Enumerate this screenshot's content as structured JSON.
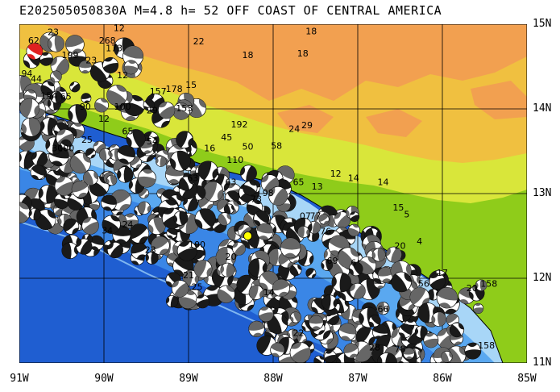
{
  "title": "E202505050830A  M=4.8  h= 52  OFF COAST OF CENTRAL AMERICA",
  "map": {
    "lon_range": [
      -91,
      -85
    ],
    "lat_range": [
      11,
      15
    ],
    "lat_labels": [
      "15N",
      "14N",
      "13N",
      "12N",
      "11N"
    ],
    "lon_labels": [
      "91W",
      "90W",
      "89W",
      "88W",
      "87W",
      "86W",
      "85W"
    ],
    "grid_lines": true,
    "colors": {
      "deep_ocean": "#1f5ed1",
      "mid_ocean": "#3a86e6",
      "shelf": "#5aa8f0",
      "shallow": "#a8d6f7",
      "lowland": "#8fcc1a",
      "hills": "#d9e63a",
      "highland": "#f0c040",
      "mountains": "#f2a050",
      "event_star": "#ffff00",
      "main_mechanism": "#e02020"
    }
  },
  "event": {
    "lon": -88.3,
    "lat": 12.5
  },
  "labels": [
    {
      "text": "23",
      "lon": -90.6,
      "lat": 14.87
    },
    {
      "text": "62",
      "lon": -90.83,
      "lat": 14.77
    },
    {
      "text": "12",
      "lon": -89.82,
      "lat": 14.92
    },
    {
      "text": "268",
      "lon": -89.96,
      "lat": 14.77
    },
    {
      "text": "173",
      "lon": -89.88,
      "lat": 14.68
    },
    {
      "text": "22",
      "lon": -88.88,
      "lat": 14.76
    },
    {
      "text": "18",
      "lon": -88.3,
      "lat": 14.6
    },
    {
      "text": "18",
      "lon": -87.65,
      "lat": 14.62
    },
    {
      "text": "18",
      "lon": -87.55,
      "lat": 14.88
    },
    {
      "text": "199",
      "lon": -90.4,
      "lat": 14.6
    },
    {
      "text": "23",
      "lon": -90.15,
      "lat": 14.54
    },
    {
      "text": "94",
      "lon": -90.91,
      "lat": 14.38
    },
    {
      "text": "44",
      "lon": -90.8,
      "lat": 14.32
    },
    {
      "text": "12",
      "lon": -89.78,
      "lat": 14.36
    },
    {
      "text": "178",
      "lon": -89.17,
      "lat": 14.2
    },
    {
      "text": "15",
      "lon": -88.97,
      "lat": 14.25
    },
    {
      "text": "157",
      "lon": -89.36,
      "lat": 14.17
    },
    {
      "text": "154",
      "lon": -90.65,
      "lat": 14.12
    },
    {
      "text": "65",
      "lon": -90.45,
      "lat": 14.11
    },
    {
      "text": "90",
      "lon": -90.22,
      "lat": 13.99
    },
    {
      "text": "100",
      "lon": -89.78,
      "lat": 13.99
    },
    {
      "text": "12",
      "lon": -90.0,
      "lat": 13.85
    },
    {
      "text": "29",
      "lon": -89.43,
      "lat": 13.95
    },
    {
      "text": "153",
      "lon": -89.05,
      "lat": 13.97
    },
    {
      "text": "65",
      "lon": -89.72,
      "lat": 13.7
    },
    {
      "text": "54",
      "lon": -89.43,
      "lat": 13.58
    },
    {
      "text": "192",
      "lon": -88.4,
      "lat": 13.78
    },
    {
      "text": "45",
      "lon": -88.55,
      "lat": 13.63
    },
    {
      "text": "24",
      "lon": -87.75,
      "lat": 13.73
    },
    {
      "text": "29",
      "lon": -87.6,
      "lat": 13.77
    },
    {
      "text": "16",
      "lon": -88.75,
      "lat": 13.5
    },
    {
      "text": "50",
      "lon": -88.3,
      "lat": 13.52
    },
    {
      "text": "58",
      "lon": -87.96,
      "lat": 13.53
    },
    {
      "text": "110",
      "lon": -88.45,
      "lat": 13.36
    },
    {
      "text": "25",
      "lon": -90.2,
      "lat": 13.6
    },
    {
      "text": "30",
      "lon": -90.55,
      "lat": 13.5
    },
    {
      "text": "100",
      "lon": -90.45,
      "lat": 13.5
    },
    {
      "text": "63",
      "lon": -88.95,
      "lat": 13.15
    },
    {
      "text": "63",
      "lon": -88.5,
      "lat": 13.1
    },
    {
      "text": "65",
      "lon": -87.7,
      "lat": 13.1
    },
    {
      "text": "12",
      "lon": -87.26,
      "lat": 13.2
    },
    {
      "text": "14",
      "lon": -87.05,
      "lat": 13.15
    },
    {
      "text": "14",
      "lon": -86.7,
      "lat": 13.1
    },
    {
      "text": "13",
      "lon": -87.48,
      "lat": 13.05
    },
    {
      "text": "98",
      "lon": -88.06,
      "lat": 12.97
    },
    {
      "text": "73",
      "lon": -88.2,
      "lat": 12.9
    },
    {
      "text": "15",
      "lon": -86.52,
      "lat": 12.8
    },
    {
      "text": "5",
      "lon": -86.42,
      "lat": 12.72
    },
    {
      "text": "07",
      "lon": -87.62,
      "lat": 12.7
    },
    {
      "text": "77",
      "lon": -87.5,
      "lat": 12.7
    },
    {
      "text": "34",
      "lon": -89.96,
      "lat": 12.53
    },
    {
      "text": "24",
      "lon": -89.72,
      "lat": 12.6
    },
    {
      "text": "76",
      "lon": -87.38,
      "lat": 12.52
    },
    {
      "text": "23",
      "lon": -89.45,
      "lat": 12.3
    },
    {
      "text": "100",
      "lon": -88.9,
      "lat": 12.36
    },
    {
      "text": "20",
      "lon": -88.5,
      "lat": 12.22
    },
    {
      "text": "69",
      "lon": -87.3,
      "lat": 12.17
    },
    {
      "text": "6",
      "lon": -87.05,
      "lat": 12.15
    },
    {
      "text": "20",
      "lon": -86.5,
      "lat": 12.35
    },
    {
      "text": "4",
      "lon": -86.27,
      "lat": 12.4
    },
    {
      "text": "17",
      "lon": -86.0,
      "lat": 12.03
    },
    {
      "text": "56",
      "lon": -86.22,
      "lat": 11.9
    },
    {
      "text": "20",
      "lon": -85.65,
      "lat": 11.85
    },
    {
      "text": "158",
      "lon": -85.45,
      "lat": 11.9
    },
    {
      "text": "21",
      "lon": -89.0,
      "lat": 12.0
    },
    {
      "text": "25",
      "lon": -88.9,
      "lat": 11.86
    },
    {
      "text": "14",
      "lon": -88.05,
      "lat": 11.8
    },
    {
      "text": "66",
      "lon": -86.7,
      "lat": 11.6
    },
    {
      "text": "22",
      "lon": -87.7,
      "lat": 11.32
    },
    {
      "text": "28",
      "lon": -86.8,
      "lat": 11.15
    },
    {
      "text": "78",
      "lon": -86.5,
      "lat": 11.13
    },
    {
      "text": "158",
      "lon": -85.48,
      "lat": 11.17
    }
  ]
}
